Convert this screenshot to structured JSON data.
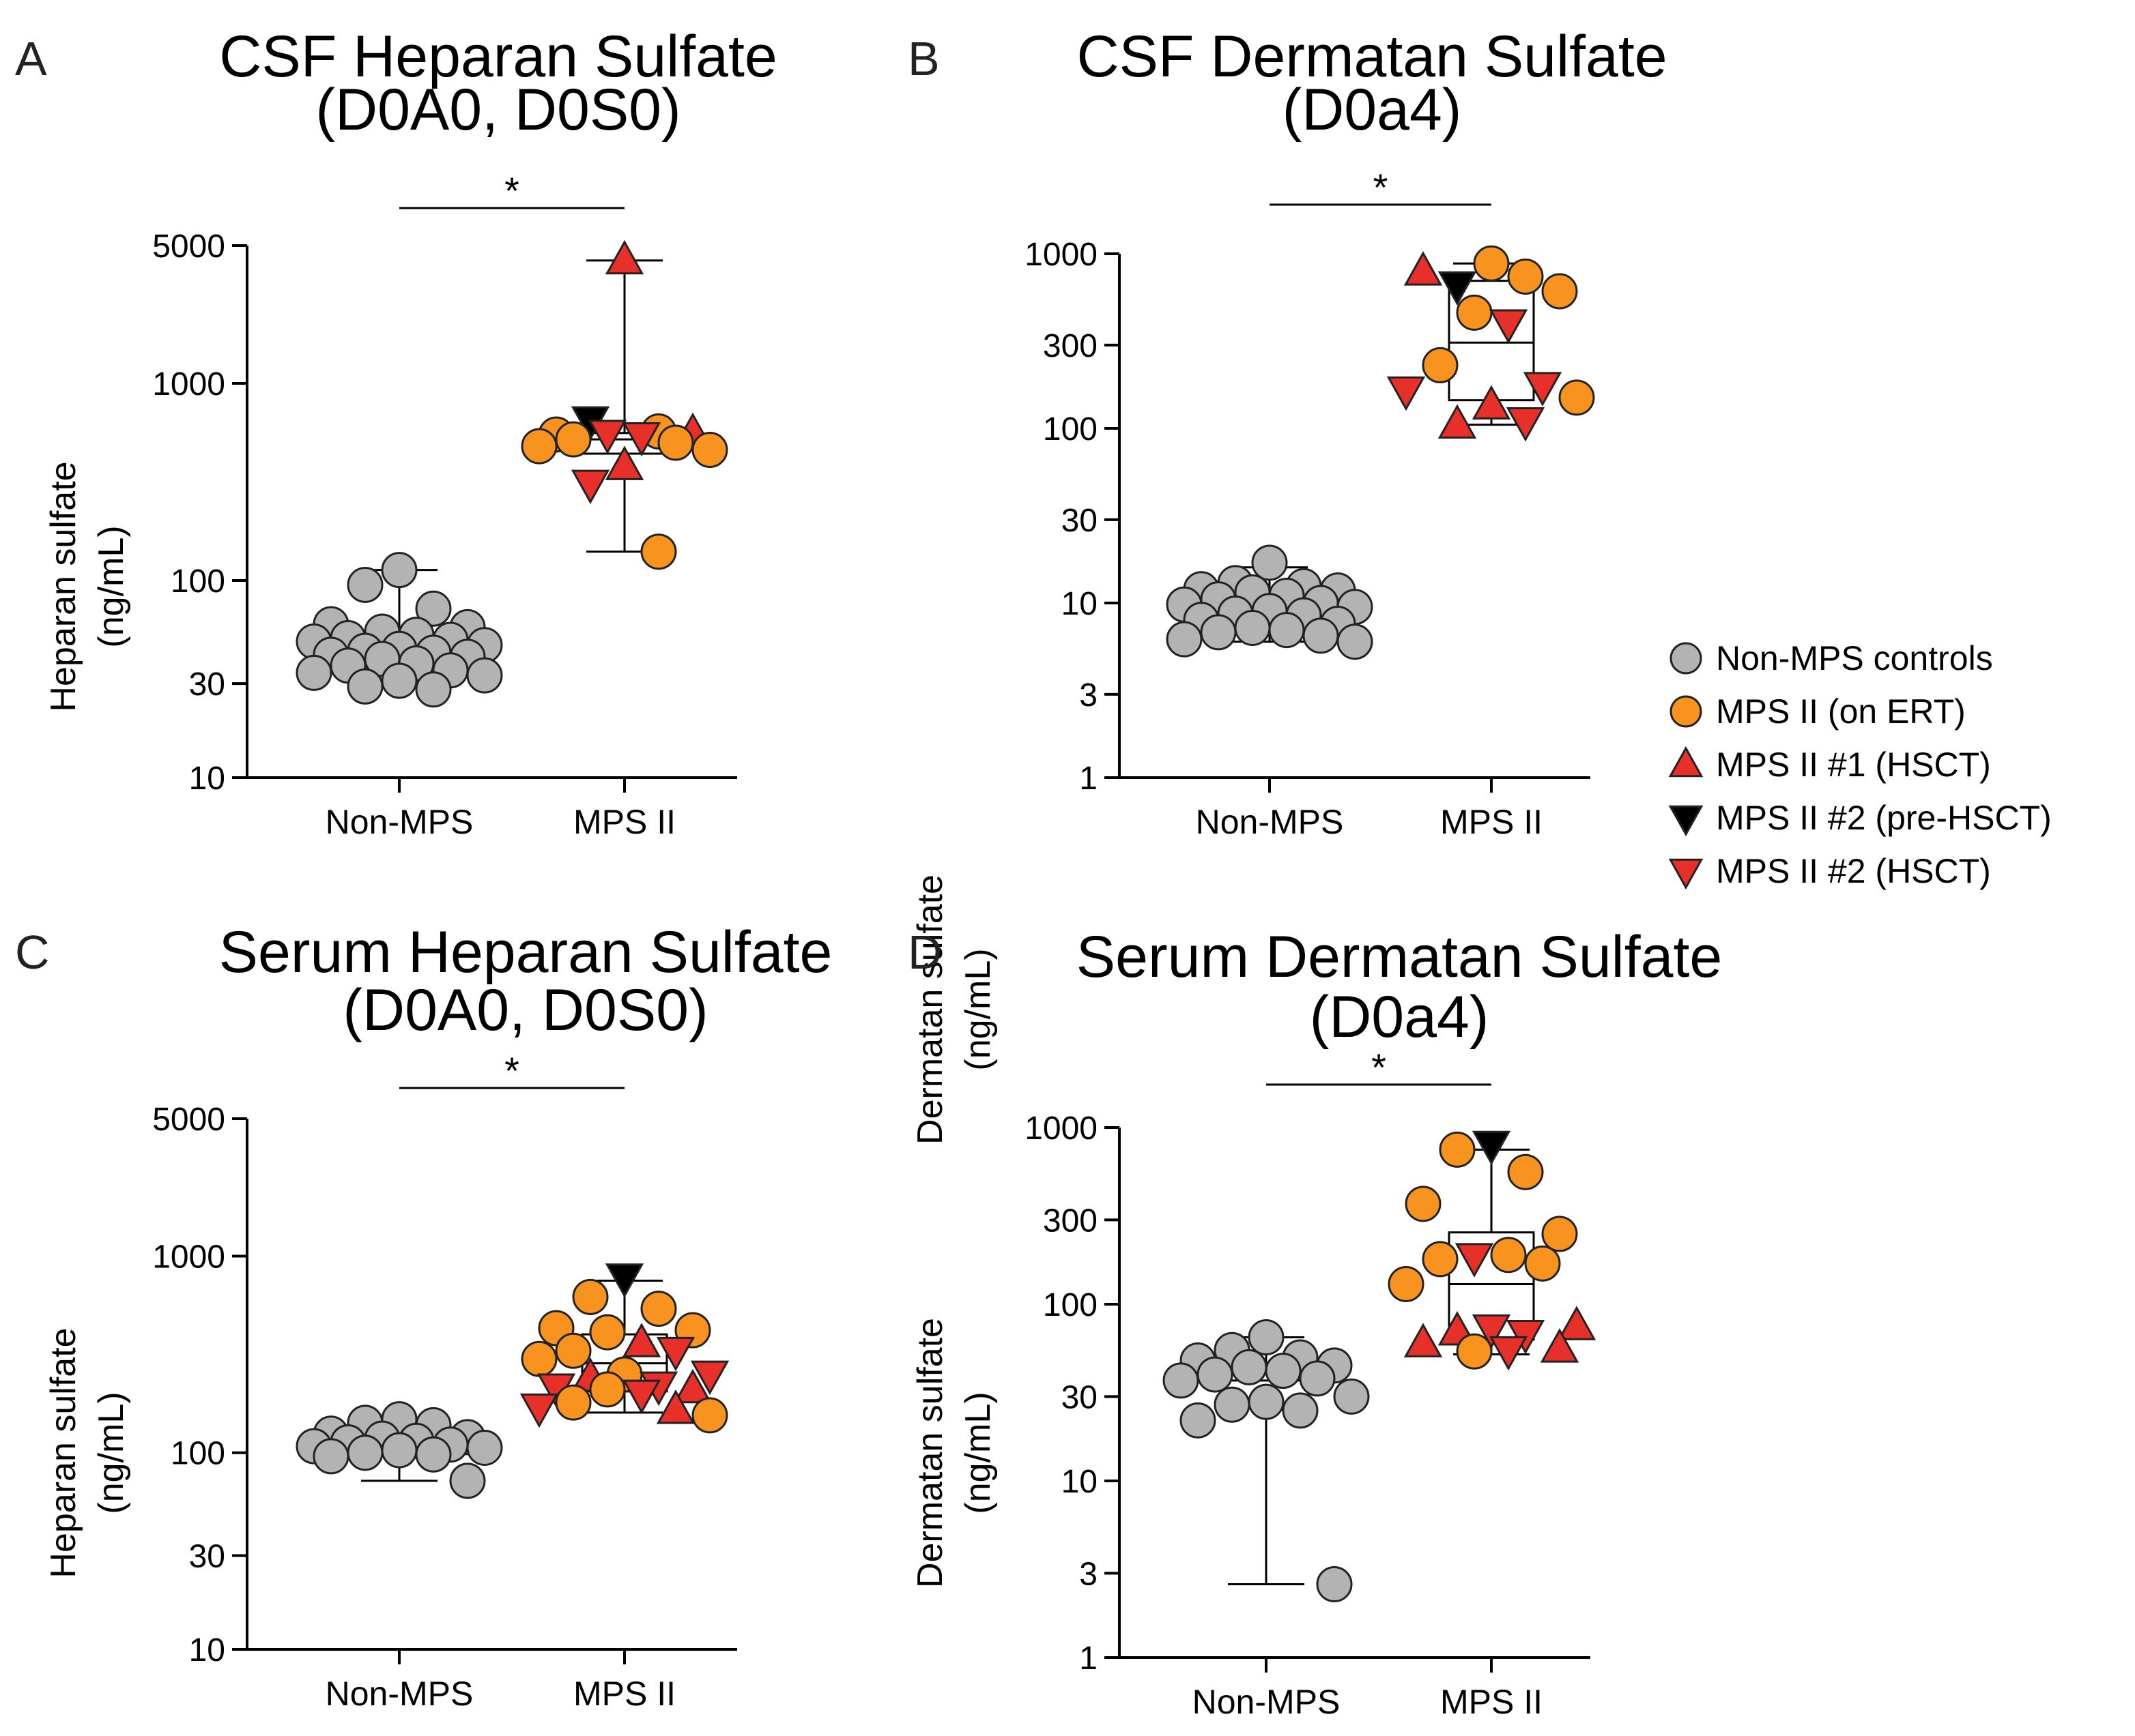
{
  "legend": {
    "items": [
      {
        "key": "ctrl",
        "label": "Non-MPS controls",
        "marker": "circle",
        "color": "#b3b3b3"
      },
      {
        "key": "ert",
        "label": "MPS II (on ERT)",
        "marker": "circle",
        "color": "#f7931e"
      },
      {
        "key": "hsct1",
        "label": "MPS II #1 (HSCT)",
        "marker": "triangle-up",
        "color": "#e8302a"
      },
      {
        "key": "pre2",
        "label": "MPS II #2 (pre-HSCT)",
        "marker": "triangle-down",
        "color": "#000000"
      },
      {
        "key": "hsct2",
        "label": "MPS II #2 (HSCT)",
        "marker": "triangle-down",
        "color": "#e8302a"
      }
    ]
  },
  "chart_data": [
    {
      "panel": "A",
      "type": "scatter",
      "scale": "log",
      "title": [
        "CSF Heparan Sulfate",
        "(D0A0, D0S0)"
      ],
      "ylabel": [
        "Heparan sulfate",
        "(ng/mL)"
      ],
      "ylim": [
        10,
        5000
      ],
      "yticks": [
        "10",
        "30",
        "100",
        "1000",
        "5000"
      ],
      "categories": [
        "Non-MPS",
        "MPS II"
      ],
      "significance": "*",
      "boxes": [
        {
          "min": 29,
          "q1": 38,
          "median": 44,
          "q3": 51,
          "max": 113
        },
        {
          "min": 140,
          "q1": 440,
          "median": 520,
          "q3": 560,
          "max": 4200
        }
      ],
      "points": [
        [
          {
            "g": "ctrl",
            "v": 113
          },
          {
            "g": "ctrl",
            "v": 95
          },
          {
            "g": "ctrl",
            "v": 72
          },
          {
            "g": "ctrl",
            "v": 60
          },
          {
            "g": "ctrl",
            "v": 58
          },
          {
            "g": "ctrl",
            "v": 55
          },
          {
            "g": "ctrl",
            "v": 53
          },
          {
            "g": "ctrl",
            "v": 51
          },
          {
            "g": "ctrl",
            "v": 50
          },
          {
            "g": "ctrl",
            "v": 49
          },
          {
            "g": "ctrl",
            "v": 47
          },
          {
            "g": "ctrl",
            "v": 45
          },
          {
            "g": "ctrl",
            "v": 44
          },
          {
            "g": "ctrl",
            "v": 43
          },
          {
            "g": "ctrl",
            "v": 42
          },
          {
            "g": "ctrl",
            "v": 41
          },
          {
            "g": "ctrl",
            "v": 40
          },
          {
            "g": "ctrl",
            "v": 38
          },
          {
            "g": "ctrl",
            "v": 37
          },
          {
            "g": "ctrl",
            "v": 35
          },
          {
            "g": "ctrl",
            "v": 34
          },
          {
            "g": "ctrl",
            "v": 33
          },
          {
            "g": "ctrl",
            "v": 31
          },
          {
            "g": "ctrl",
            "v": 29
          },
          {
            "g": "ctrl",
            "v": 28
          }
        ],
        [
          {
            "g": "hsct1",
            "v": 4200
          },
          {
            "g": "pre2",
            "v": 650
          },
          {
            "g": "ert",
            "v": 570
          },
          {
            "g": "ert",
            "v": 550
          },
          {
            "g": "hsct1",
            "v": 560
          },
          {
            "g": "hsct2",
            "v": 555
          },
          {
            "g": "hsct2",
            "v": 540
          },
          {
            "g": "ert",
            "v": 520
          },
          {
            "g": "ert",
            "v": 500
          },
          {
            "g": "ert",
            "v": 480
          },
          {
            "g": "ert",
            "v": 460
          },
          {
            "g": "hsct1",
            "v": 380
          },
          {
            "g": "hsct2",
            "v": 310
          },
          {
            "g": "ert",
            "v": 140
          }
        ]
      ]
    },
    {
      "panel": "B",
      "type": "scatter",
      "scale": "log",
      "title": [
        "CSF Dermatan Sulfate",
        "(D0a4)"
      ],
      "ylabel": [
        "Dermatan sulfate",
        "(ng/mL)"
      ],
      "ylim": [
        1,
        1000
      ],
      "yticks": [
        "1",
        "3",
        "10",
        "30",
        "100",
        "300",
        "1000"
      ],
      "categories": [
        "Non-MPS",
        "MPS II"
      ],
      "significance": "*",
      "boxes": [
        {
          "min": 6,
          "q1": 7.7,
          "median": 10,
          "q3": 11.5,
          "max": 16
        },
        {
          "min": 105,
          "q1": 145,
          "median": 310,
          "q3": 700,
          "max": 880
        }
      ],
      "points": [
        [
          {
            "g": "ctrl",
            "v": 17
          },
          {
            "g": "ctrl",
            "v": 13
          },
          {
            "g": "ctrl",
            "v": 12.5
          },
          {
            "g": "ctrl",
            "v": 12
          },
          {
            "g": "ctrl",
            "v": 11.8
          },
          {
            "g": "ctrl",
            "v": 11.5
          },
          {
            "g": "ctrl",
            "v": 11
          },
          {
            "g": "ctrl",
            "v": 10.5
          },
          {
            "g": "ctrl",
            "v": 10
          },
          {
            "g": "ctrl",
            "v": 9.8
          },
          {
            "g": "ctrl",
            "v": 9.5
          },
          {
            "g": "ctrl",
            "v": 9
          },
          {
            "g": "ctrl",
            "v": 8.7
          },
          {
            "g": "ctrl",
            "v": 8.5
          },
          {
            "g": "ctrl",
            "v": 8
          },
          {
            "g": "ctrl",
            "v": 7.6
          },
          {
            "g": "ctrl",
            "v": 7.2
          },
          {
            "g": "ctrl",
            "v": 7
          },
          {
            "g": "ctrl",
            "v": 6.8
          },
          {
            "g": "ctrl",
            "v": 6.5
          },
          {
            "g": "ctrl",
            "v": 6.2
          },
          {
            "g": "ctrl",
            "v": 6
          }
        ],
        [
          {
            "g": "ert",
            "v": 880
          },
          {
            "g": "pre2",
            "v": 660
          },
          {
            "g": "ert",
            "v": 740
          },
          {
            "g": "hsct1",
            "v": 790
          },
          {
            "g": "ert",
            "v": 610
          },
          {
            "g": "ert",
            "v": 460
          },
          {
            "g": "hsct2",
            "v": 400
          },
          {
            "g": "ert",
            "v": 230
          },
          {
            "g": "hsct2",
            "v": 175
          },
          {
            "g": "hsct2",
            "v": 165
          },
          {
            "g": "ert",
            "v": 150
          },
          {
            "g": "hsct1",
            "v": 135
          },
          {
            "g": "hsct1",
            "v": 105
          },
          {
            "g": "hsct2",
            "v": 110
          }
        ]
      ]
    },
    {
      "panel": "C",
      "type": "scatter",
      "scale": "log",
      "title": [
        "Serum Heparan Sulfate",
        "(D0A0, D0S0)"
      ],
      "ylabel": [
        "Heparan sulfate",
        "(ng/mL)"
      ],
      "ylim": [
        10,
        5000
      ],
      "yticks": [
        "10",
        "30",
        "100",
        "1000",
        "5000"
      ],
      "categories": [
        "Non-MPS",
        "MPS II"
      ],
      "significance": "*",
      "boxes": [
        {
          "min": 72,
          "q1": 103,
          "median": 110,
          "q3": 125,
          "max": 150
        },
        {
          "min": 160,
          "q1": 205,
          "median": 285,
          "q3": 400,
          "max": 750
        }
      ],
      "points": [
        [
          {
            "g": "ctrl",
            "v": 148
          },
          {
            "g": "ctrl",
            "v": 142
          },
          {
            "g": "ctrl",
            "v": 138
          },
          {
            "g": "ctrl",
            "v": 125
          },
          {
            "g": "ctrl",
            "v": 120
          },
          {
            "g": "ctrl",
            "v": 118
          },
          {
            "g": "ctrl",
            "v": 115
          },
          {
            "g": "ctrl",
            "v": 113
          },
          {
            "g": "ctrl",
            "v": 110
          },
          {
            "g": "ctrl",
            "v": 108
          },
          {
            "g": "ctrl",
            "v": 106
          },
          {
            "g": "ctrl",
            "v": 103
          },
          {
            "g": "ctrl",
            "v": 100
          },
          {
            "g": "ctrl",
            "v": 98
          },
          {
            "g": "ctrl",
            "v": 96
          },
          {
            "g": "ctrl",
            "v": 72
          }
        ],
        [
          {
            "g": "pre2",
            "v": 780
          },
          {
            "g": "ert",
            "v": 620
          },
          {
            "g": "ert",
            "v": 540
          },
          {
            "g": "ert",
            "v": 430
          },
          {
            "g": "ert",
            "v": 420
          },
          {
            "g": "ert",
            "v": 410
          },
          {
            "g": "hsct1",
            "v": 360
          },
          {
            "g": "ert",
            "v": 330
          },
          {
            "g": "hsct2",
            "v": 330
          },
          {
            "g": "ert",
            "v": 300
          },
          {
            "g": "hsct2",
            "v": 250
          },
          {
            "g": "ert",
            "v": 250
          },
          {
            "g": "hsct1",
            "v": 240
          },
          {
            "g": "hsct2",
            "v": 220
          },
          {
            "g": "hsct2",
            "v": 215
          },
          {
            "g": "hsct1",
            "v": 210
          },
          {
            "g": "ert",
            "v": 210
          },
          {
            "g": "hsct2",
            "v": 200
          },
          {
            "g": "ert",
            "v": 180
          },
          {
            "g": "hsct1",
            "v": 165
          },
          {
            "g": "hsct2",
            "v": 170
          },
          {
            "g": "ert",
            "v": 155
          }
        ]
      ]
    },
    {
      "panel": "D",
      "type": "scatter",
      "scale": "log",
      "title": [
        "Serum Dermatan Sulfate",
        "(D0a4)"
      ],
      "ylabel": [
        "Dermatan sulfate",
        "(ng/mL)"
      ],
      "ylim": [
        1,
        1000
      ],
      "yticks": [
        "1",
        "3",
        "10",
        "30",
        "100",
        "300",
        "1000"
      ],
      "categories": [
        "Non-MPS",
        "MPS II"
      ],
      "significance": "*",
      "boxes": [
        {
          "min": 2.6,
          "q1": 26,
          "median": 37,
          "q3": 45,
          "max": 65
        },
        {
          "min": 52,
          "q1": 63,
          "median": 130,
          "q3": 255,
          "max": 750
        }
      ],
      "points": [
        [
          {
            "g": "ctrl",
            "v": 65
          },
          {
            "g": "ctrl",
            "v": 55
          },
          {
            "g": "ctrl",
            "v": 50
          },
          {
            "g": "ctrl",
            "v": 48
          },
          {
            "g": "ctrl",
            "v": 45
          },
          {
            "g": "ctrl",
            "v": 44
          },
          {
            "g": "ctrl",
            "v": 42
          },
          {
            "g": "ctrl",
            "v": 40
          },
          {
            "g": "ctrl",
            "v": 38
          },
          {
            "g": "ctrl",
            "v": 37
          },
          {
            "g": "ctrl",
            "v": 30
          },
          {
            "g": "ctrl",
            "v": 28
          },
          {
            "g": "ctrl",
            "v": 27
          },
          {
            "g": "ctrl",
            "v": 25
          },
          {
            "g": "ctrl",
            "v": 22
          },
          {
            "g": "ctrl",
            "v": 2.6
          }
        ],
        [
          {
            "g": "pre2",
            "v": 800
          },
          {
            "g": "ert",
            "v": 750
          },
          {
            "g": "ert",
            "v": 560
          },
          {
            "g": "ert",
            "v": 370
          },
          {
            "g": "ert",
            "v": 250
          },
          {
            "g": "hsct2",
            "v": 185
          },
          {
            "g": "ert",
            "v": 190
          },
          {
            "g": "ert",
            "v": 180
          },
          {
            "g": "ert",
            "v": 170
          },
          {
            "g": "ert",
            "v": 130
          },
          {
            "g": "hsct1",
            "v": 75
          },
          {
            "g": "hsct2",
            "v": 73
          },
          {
            "g": "hsct1",
            "v": 70
          },
          {
            "g": "hsct2",
            "v": 68
          },
          {
            "g": "hsct1",
            "v": 60
          },
          {
            "g": "hsct1",
            "v": 56
          },
          {
            "g": "ert",
            "v": 54
          },
          {
            "g": "hsct2",
            "v": 55
          }
        ]
      ]
    }
  ]
}
